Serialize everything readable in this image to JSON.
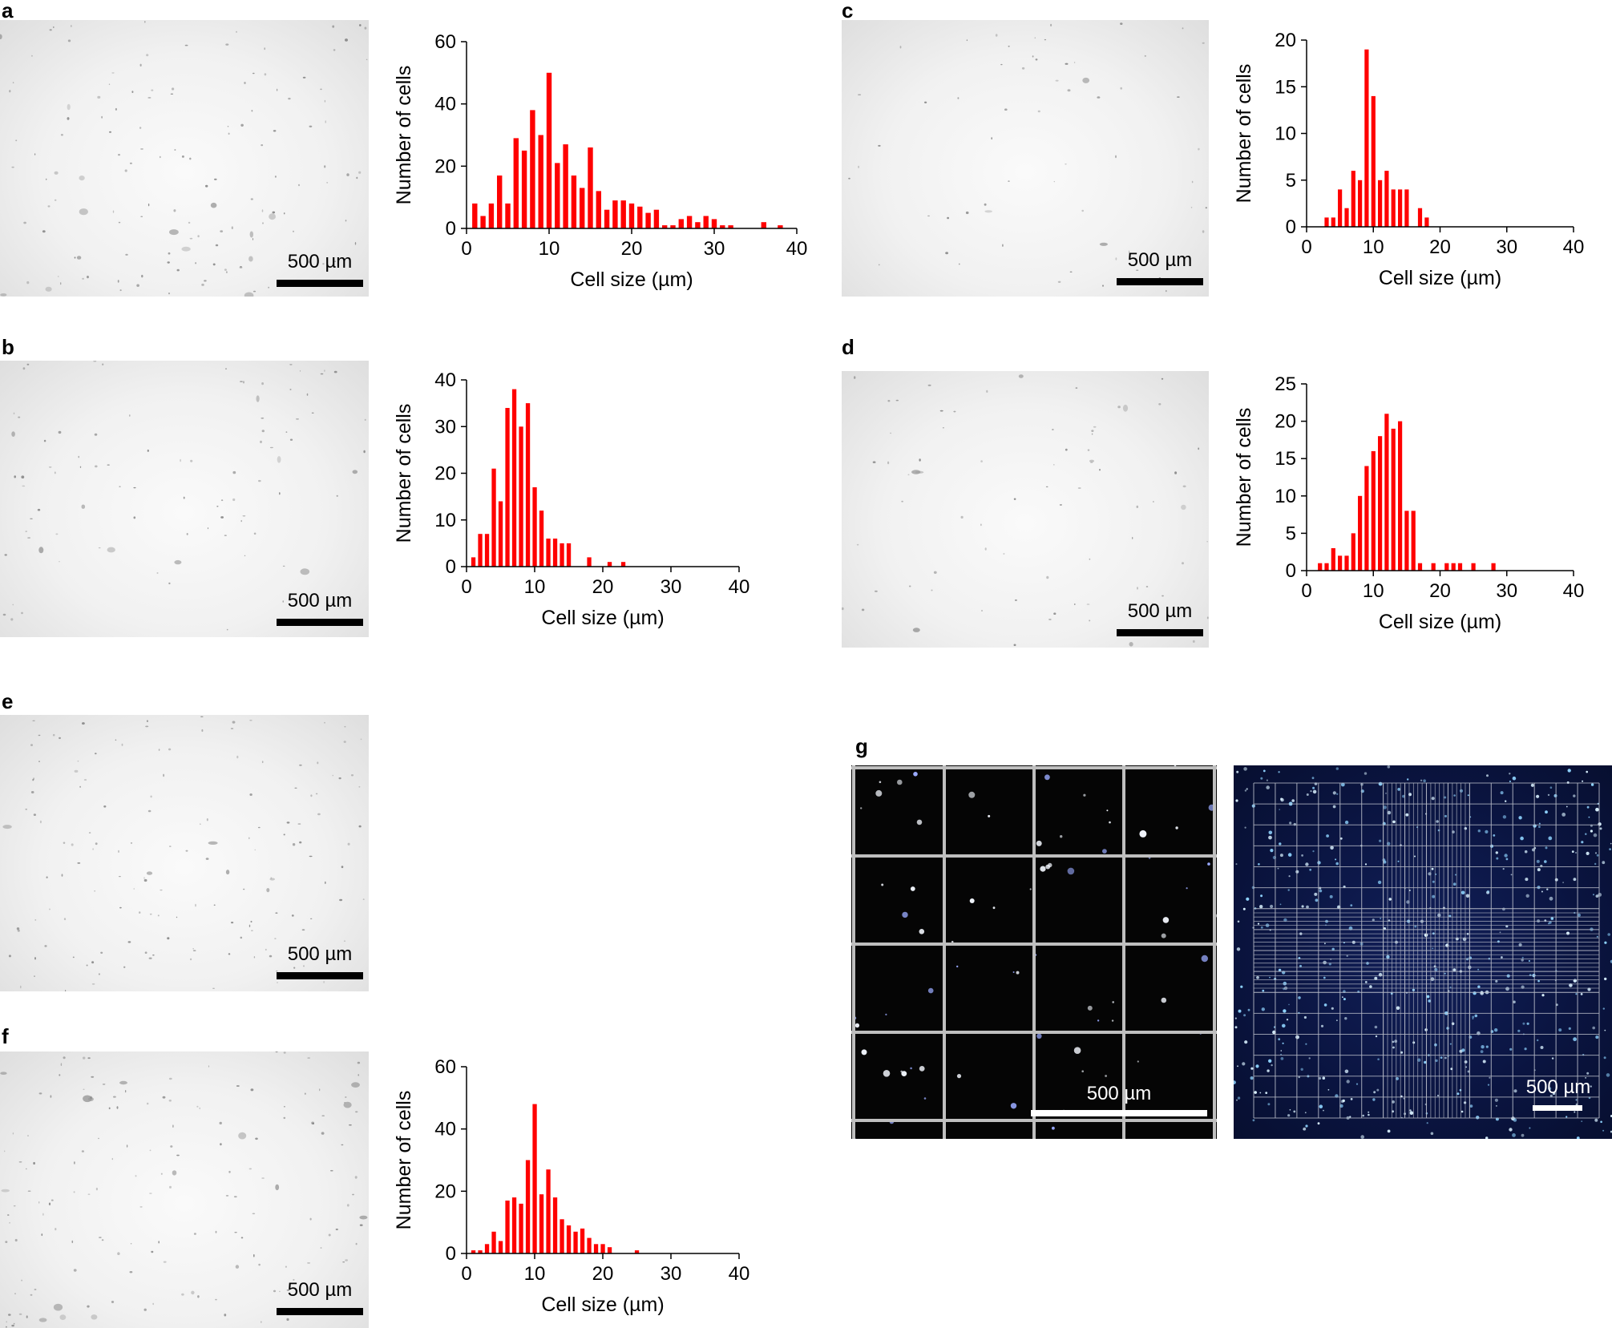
{
  "panels": {
    "a": {
      "label": "a",
      "scale": "500 µm"
    },
    "b": {
      "label": "b",
      "scale": "500 µm"
    },
    "c": {
      "label": "c",
      "scale": "500 µm"
    },
    "d": {
      "label": "d",
      "scale": "500 µm"
    },
    "e": {
      "label": "e",
      "scale": "500 µm"
    },
    "f": {
      "label": "f",
      "scale": "500 µm"
    },
    "g": {
      "label": "g",
      "scale_left": "500 µm",
      "scale_right": "500 µm"
    }
  },
  "colors": {
    "bar": "#ff0000",
    "axis": "#000000"
  },
  "chart_data": [
    {
      "id": "a",
      "type": "bar",
      "xlabel": "Cell size (µm)",
      "ylabel": "Number of cells",
      "xlim": [
        0,
        40
      ],
      "ylim": [
        0,
        60
      ],
      "xticks": [
        0,
        10,
        20,
        30,
        40
      ],
      "yticks": [
        0,
        20,
        40,
        60
      ],
      "x": [
        1,
        2,
        3,
        4,
        5,
        6,
        7,
        8,
        9,
        10,
        11,
        12,
        13,
        14,
        15,
        16,
        17,
        18,
        19,
        20,
        21,
        22,
        23,
        24,
        25,
        26,
        27,
        28,
        29,
        30,
        31,
        32,
        36,
        38
      ],
      "values": [
        8,
        4,
        8,
        17,
        8,
        29,
        25,
        38,
        30,
        50,
        21,
        27,
        17,
        13,
        26,
        12,
        6,
        9,
        9,
        8,
        7,
        5,
        6,
        1,
        1,
        3,
        4,
        2,
        4,
        3,
        1,
        1,
        2,
        1
      ]
    },
    {
      "id": "b",
      "type": "bar",
      "xlabel": "Cell size (µm)",
      "ylabel": "Number of cells",
      "xlim": [
        0,
        40
      ],
      "ylim": [
        0,
        40
      ],
      "xticks": [
        0,
        10,
        20,
        30,
        40
      ],
      "yticks": [
        0,
        10,
        20,
        30,
        40
      ],
      "x": [
        1,
        2,
        3,
        4,
        5,
        6,
        7,
        8,
        9,
        10,
        11,
        12,
        13,
        14,
        15,
        18,
        21,
        23
      ],
      "values": [
        2,
        7,
        7,
        21,
        14,
        34,
        38,
        30,
        35,
        17,
        12,
        6,
        6,
        5,
        5,
        2,
        1,
        1
      ]
    },
    {
      "id": "c",
      "type": "bar",
      "xlabel": "Cell size (µm)",
      "ylabel": "Number of cells",
      "xlim": [
        0,
        40
      ],
      "ylim": [
        0,
        20
      ],
      "xticks": [
        0,
        10,
        20,
        30,
        40
      ],
      "yticks": [
        0,
        5,
        10,
        15,
        20
      ],
      "x": [
        3,
        4,
        5,
        6,
        7,
        8,
        9,
        10,
        11,
        12,
        13,
        14,
        15,
        17,
        18
      ],
      "values": [
        1,
        1,
        4,
        2,
        6,
        5,
        19,
        14,
        5,
        6,
        4,
        4,
        4,
        2,
        1
      ]
    },
    {
      "id": "d",
      "type": "bar",
      "xlabel": "Cell size (µm)",
      "ylabel": "Number of cells",
      "xlim": [
        0,
        40
      ],
      "ylim": [
        0,
        25
      ],
      "xticks": [
        0,
        10,
        20,
        30,
        40
      ],
      "yticks": [
        0,
        5,
        10,
        15,
        20,
        25
      ],
      "x": [
        2,
        3,
        4,
        5,
        6,
        7,
        8,
        9,
        10,
        11,
        12,
        13,
        14,
        15,
        16,
        17,
        19,
        21,
        22,
        23,
        25,
        28
      ],
      "values": [
        1,
        1,
        3,
        2,
        2,
        5,
        10,
        14,
        16,
        18,
        21,
        19,
        20,
        8,
        8,
        1,
        1,
        1,
        1,
        1,
        1,
        1
      ]
    },
    {
      "id": "f",
      "type": "bar",
      "xlabel": "Cell size (µm)",
      "ylabel": "Number of cells",
      "xlim": [
        0,
        40
      ],
      "ylim": [
        0,
        60
      ],
      "xticks": [
        0,
        10,
        20,
        30,
        40
      ],
      "yticks": [
        0,
        20,
        40,
        60
      ],
      "x": [
        1,
        2,
        3,
        4,
        5,
        6,
        7,
        8,
        9,
        10,
        11,
        12,
        13,
        14,
        15,
        16,
        17,
        18,
        19,
        20,
        21,
        25
      ],
      "values": [
        1,
        1,
        3,
        7,
        4,
        17,
        18,
        16,
        30,
        48,
        19,
        27,
        18,
        11,
        9,
        7,
        8,
        5,
        3,
        3,
        2,
        1
      ]
    }
  ]
}
